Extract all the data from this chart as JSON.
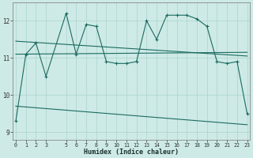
{
  "xlabel": "Humidex (Indice chaleur)",
  "background_color": "#ceeae6",
  "line_color": "#1a6b60",
  "grid_color": "#aad4ce",
  "x_values": [
    0,
    1,
    2,
    3,
    5,
    6,
    7,
    8,
    9,
    10,
    11,
    12,
    13,
    14,
    15,
    16,
    17,
    18,
    19,
    20,
    21,
    22,
    23
  ],
  "series1": [
    9.3,
    11.1,
    11.4,
    10.5,
    12.2,
    11.1,
    11.9,
    11.85,
    10.9,
    10.85,
    10.85,
    10.9,
    12.0,
    11.5,
    12.15,
    12.15,
    12.15,
    12.05,
    11.85,
    10.9,
    10.85,
    10.9,
    9.5
  ],
  "trend1_x": [
    0,
    23
  ],
  "trend1_y": [
    11.45,
    11.05
  ],
  "trend2_x": [
    0,
    23
  ],
  "trend2_y": [
    11.1,
    11.15
  ],
  "trend3_x": [
    0,
    23
  ],
  "trend3_y": [
    9.7,
    9.2
  ],
  "yticks": [
    9,
    10,
    11,
    12
  ],
  "xticks": [
    0,
    1,
    2,
    3,
    5,
    6,
    7,
    8,
    9,
    10,
    11,
    12,
    13,
    14,
    15,
    16,
    17,
    18,
    19,
    20,
    21,
    22,
    23
  ],
  "ylim": [
    8.8,
    12.5
  ],
  "xlim": [
    -0.3,
    23.3
  ]
}
